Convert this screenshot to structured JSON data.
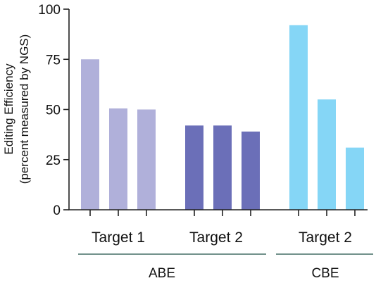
{
  "chart_data": {
    "type": "bar",
    "ylabel": [
      "Editing Efficiency",
      "(percent measured by NGS)"
    ],
    "ylim": [
      0,
      100
    ],
    "yticks": [
      0,
      25,
      50,
      75,
      100
    ],
    "grid": false,
    "bars": [
      {
        "editor": "ABE",
        "target": "Target 1",
        "value": 75,
        "color": "#b0b0da"
      },
      {
        "editor": "ABE",
        "target": "Target 1",
        "value": 50.5,
        "color": "#b0b0da"
      },
      {
        "editor": "ABE",
        "target": "Target 1",
        "value": 50,
        "color": "#b0b0da"
      },
      {
        "editor": "ABE",
        "target": "Target 2",
        "value": 42,
        "color": "#6b6fb8"
      },
      {
        "editor": "ABE",
        "target": "Target 2",
        "value": 42,
        "color": "#6b6fb8"
      },
      {
        "editor": "ABE",
        "target": "Target 2",
        "value": 39,
        "color": "#6b6fb8"
      },
      {
        "editor": "CBE",
        "target": "Target 2",
        "value": 92,
        "color": "#85d6f6"
      },
      {
        "editor": "CBE",
        "target": "Target 2",
        "value": 55,
        "color": "#85d6f6"
      },
      {
        "editor": "CBE",
        "target": "Target 2",
        "value": 31,
        "color": "#85d6f6"
      }
    ],
    "subgroups": [
      "Target 1",
      "Target 2",
      "Target 2"
    ],
    "groups": [
      "ABE",
      "CBE"
    ]
  }
}
